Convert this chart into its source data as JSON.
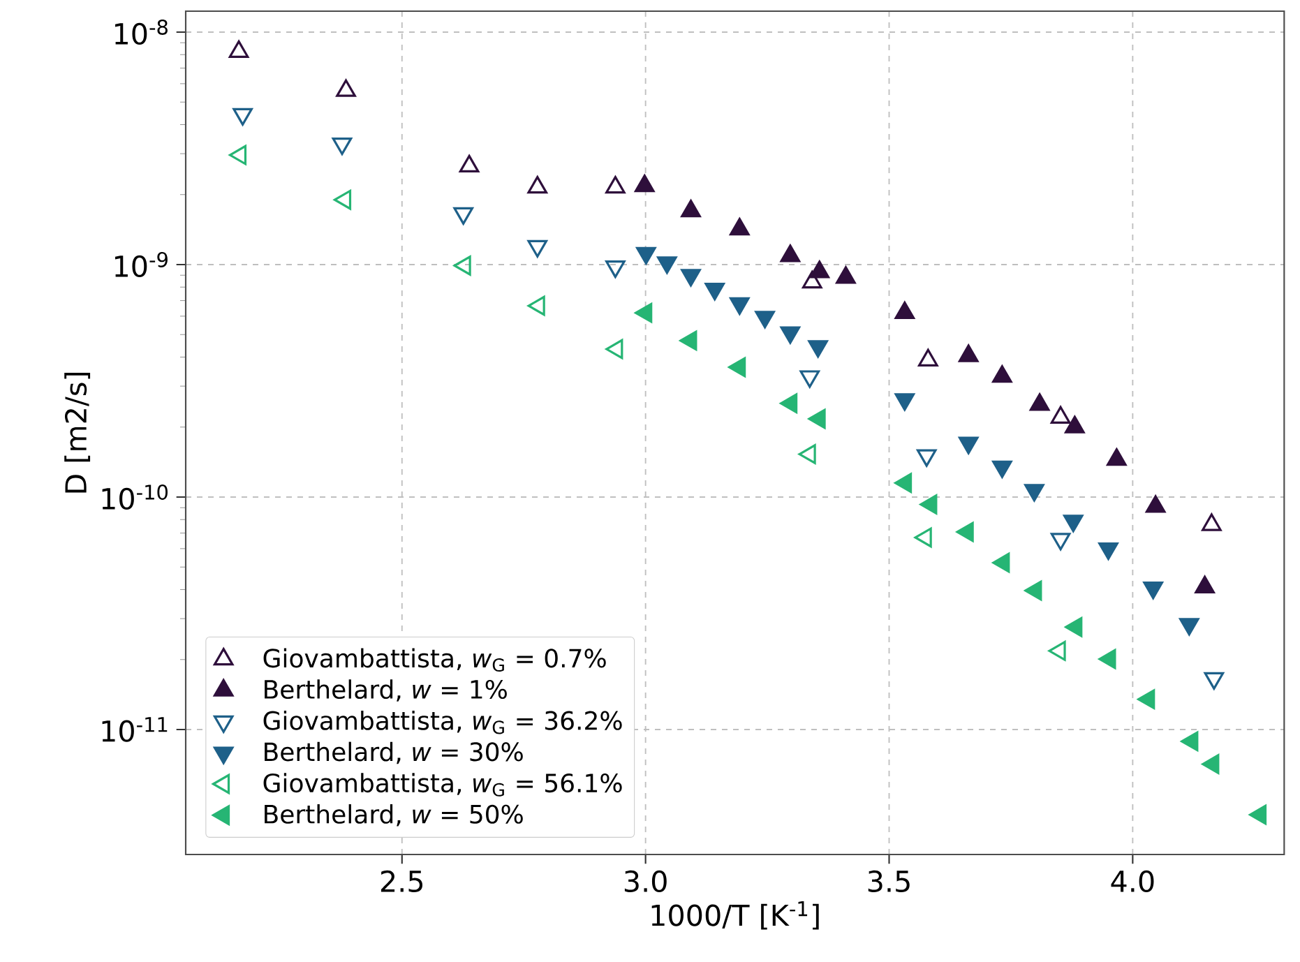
{
  "chart_data": {
    "type": "scatter",
    "xlabel": "1000/T [K$^{-1}$]",
    "ylabel": "D [m2/s]",
    "log": "y",
    "grid": true,
    "legend": "bottom left",
    "xlim": [
      2.056,
      4.311
    ],
    "ylim": [
      2.9e-12,
      1.23e-08
    ],
    "xticks": [
      2.5,
      {
        "value": 3.0,
        "label": "3.0"
      },
      3.5,
      {
        "value": 4.0,
        "label": "4.0"
      }
    ],
    "yticks": [
      {
        "value": 1e-11,
        "label": "10$^{-11}$"
      },
      {
        "value": 1e-10,
        "label": "10$^{-10}$"
      },
      {
        "value": 1e-09,
        "label": "10$^{-9}$"
      },
      {
        "value": 1e-08,
        "label": "10$^{-8}$"
      }
    ],
    "series": [
      {
        "name": "Giovambattista, *w*$_{G}$ = 0.7%",
        "color": "#2e0f3b",
        "marker": "triangle-open",
        "x": [
          2.165,
          2.385,
          2.638,
          2.778,
          2.938,
          3.342,
          3.58,
          3.852,
          4.162
        ],
        "values": [
          8.24e-09,
          5.6e-09,
          2.65e-09,
          2.15e-09,
          2.15e-09,
          8.4e-10,
          3.88e-10,
          2.2e-10,
          7.6e-11
        ]
      },
      {
        "name": "Berthelard, *w* = 1%",
        "color": "#2e0f3b",
        "marker": "triangle",
        "x": [
          2.998,
          3.093,
          3.193,
          3.297,
          3.357,
          3.411,
          3.532,
          3.663,
          3.732,
          3.809,
          3.881,
          3.967,
          4.047,
          4.148
        ],
        "values": [
          2.18e-09,
          1.7e-09,
          1.42e-09,
          1.09e-09,
          9.3e-10,
          8.8e-10,
          6.2e-10,
          4.05e-10,
          3.3e-10,
          2.5e-10,
          2e-10,
          1.45e-10,
          9.1e-11,
          4.1e-11
        ]
      },
      {
        "name": "Giovambattista, *w*$_{G}$ = 36.2%",
        "color": "#1e6089",
        "marker": "triangle-down-open",
        "x": [
          2.173,
          2.377,
          2.626,
          2.778,
          2.938,
          3.337,
          3.577,
          3.852,
          4.167
        ],
        "values": [
          4.43e-09,
          3.31e-09,
          1.66e-09,
          1.2e-09,
          9.8e-10,
          3.3e-10,
          1.51e-10,
          6.6e-11,
          1.66e-11
        ]
      },
      {
        "name": "Berthelard, *w* = 30%",
        "color": "#1e6089",
        "marker": "triangle-down",
        "x": [
          3.001,
          3.044,
          3.093,
          3.142,
          3.193,
          3.245,
          3.297,
          3.354,
          3.532,
          3.663,
          3.732,
          3.798,
          3.878,
          3.95,
          4.042,
          4.116
        ],
        "values": [
          1.12e-09,
          1.02e-09,
          9e-10,
          7.85e-10,
          6.8e-10,
          5.95e-10,
          5.1e-10,
          4.45e-10,
          2.63e-10,
          1.71e-10,
          1.35e-10,
          1.07e-10,
          7.9e-11,
          6e-11,
          4.07e-11,
          2.84e-11
        ]
      },
      {
        "name": "Giovambattista, *w*$_{G}$ = 56.1%",
        "color": "#26b574",
        "marker": "triangle-left-open",
        "x": [
          2.168,
          2.383,
          2.629,
          2.781,
          2.941,
          3.337,
          3.575,
          3.85
        ],
        "values": [
          2.96e-09,
          1.9e-09,
          9.9e-10,
          6.65e-10,
          4.33e-10,
          1.53e-10,
          6.7e-11,
          2.18e-11
        ]
      },
      {
        "name": "Berthelard, *w* = 50%",
        "color": "#26b574",
        "marker": "triangle-left",
        "x": [
          3.001,
          3.093,
          3.193,
          3.299,
          3.357,
          3.534,
          3.586,
          3.661,
          3.735,
          3.801,
          3.884,
          3.953,
          4.033,
          4.122,
          4.165,
          4.262
        ],
        "values": [
          6.2e-10,
          4.71e-10,
          3.62e-10,
          2.53e-10,
          2.17e-10,
          1.15e-10,
          9.3e-11,
          7.08e-11,
          5.22e-11,
          3.96e-11,
          2.76e-11,
          2.01e-11,
          1.35e-11,
          8.9e-12,
          7.1e-12,
          4.3e-12
        ]
      }
    ]
  }
}
